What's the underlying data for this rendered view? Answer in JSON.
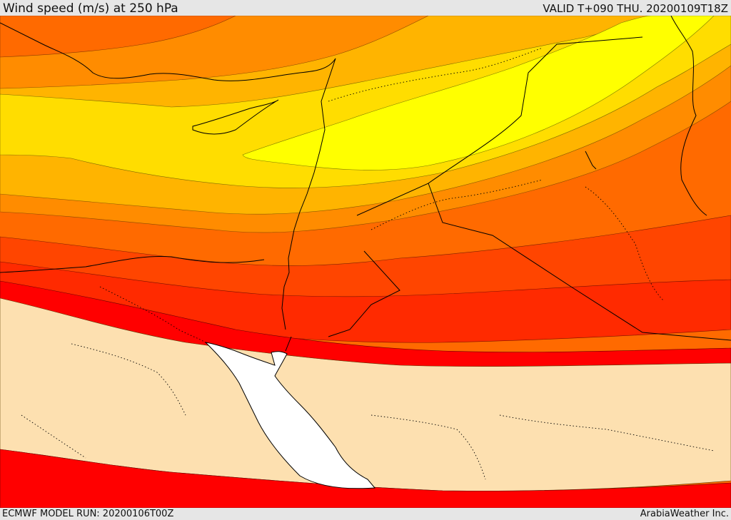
{
  "header": {
    "title": "Wind speed (m/s) at 250 hPa",
    "valid_time": "VALID T+090 THU. 20200109T18Z"
  },
  "footer": {
    "model_run": "ECMWF MODEL RUN: 20200106T00Z",
    "credit": "ArabiaWeather Inc."
  },
  "map": {
    "field": "wind speed at 250 hPa",
    "colors": {
      "yellow_max": "#ffff00",
      "yellow": "#ffdd00",
      "amber": "#ffb400",
      "orange": "#ff8c00",
      "dark_orange": "#ff6a00",
      "red_orange": "#ff4500",
      "red_strong": "#ff2a00",
      "red": "#ff0000",
      "beige_calm": "#fde0b0",
      "water": "#ffffff"
    }
  }
}
